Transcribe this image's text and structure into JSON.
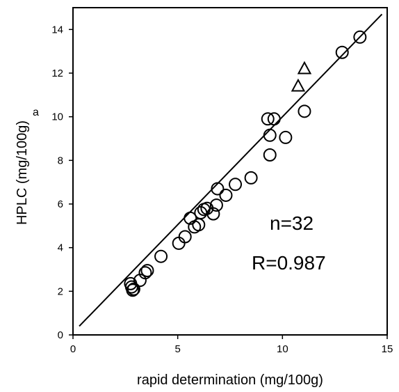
{
  "chart_data": {
    "type": "scatter",
    "xlabel": "rapid determination (mg/100g)",
    "ylabel_main": "HPLC (mg/100g)",
    "ylabel_superscript": "a",
    "xlim": [
      0,
      15
    ],
    "ylim": [
      0,
      15
    ],
    "x_ticks": [
      0,
      5,
      10,
      15
    ],
    "y_ticks": [
      0,
      2,
      4,
      6,
      8,
      10,
      12,
      14
    ],
    "grid": false,
    "annotations": [
      "n=32",
      "R=0.987"
    ],
    "fit_line": {
      "x": [
        0.3,
        14.75
      ],
      "y": [
        0.4,
        14.7
      ]
    },
    "series": [
      {
        "marker": "circle",
        "points": [
          [
            2.75,
            2.35
          ],
          [
            2.8,
            2.2
          ],
          [
            2.85,
            2.05
          ],
          [
            2.9,
            2.1
          ],
          [
            3.2,
            2.5
          ],
          [
            3.45,
            2.85
          ],
          [
            3.55,
            2.95
          ],
          [
            4.2,
            3.6
          ],
          [
            5.05,
            4.2
          ],
          [
            5.35,
            4.5
          ],
          [
            5.6,
            5.35
          ],
          [
            5.8,
            4.95
          ],
          [
            6.0,
            5.05
          ],
          [
            6.1,
            5.6
          ],
          [
            6.25,
            5.75
          ],
          [
            6.4,
            5.8
          ],
          [
            6.7,
            5.55
          ],
          [
            6.85,
            5.95
          ],
          [
            6.9,
            6.7
          ],
          [
            7.3,
            6.4
          ],
          [
            7.75,
            6.9
          ],
          [
            8.5,
            7.2
          ],
          [
            9.3,
            9.9
          ],
          [
            9.4,
            9.15
          ],
          [
            9.4,
            8.25
          ],
          [
            9.6,
            9.9
          ],
          [
            10.15,
            9.05
          ],
          [
            11.05,
            10.25
          ],
          [
            12.85,
            12.95
          ],
          [
            13.7,
            13.65
          ]
        ]
      },
      {
        "marker": "triangle",
        "points": [
          [
            10.75,
            11.4
          ],
          [
            11.05,
            12.2
          ]
        ]
      }
    ]
  }
}
